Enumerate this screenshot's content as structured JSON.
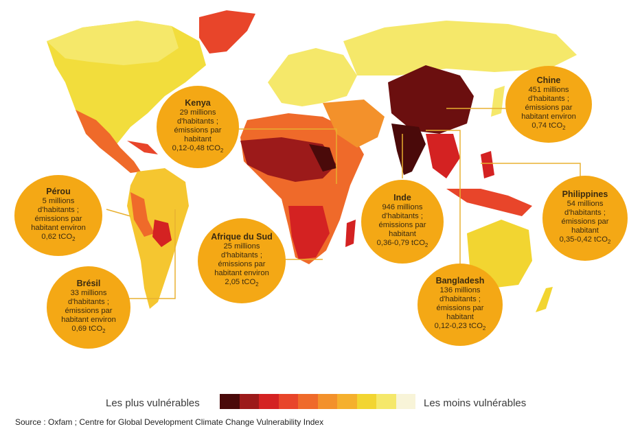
{
  "colors": {
    "bubble": "#f4a815",
    "connector": "#e8b030",
    "scale": [
      "#4a0a0a",
      "#9c1a1a",
      "#d42222",
      "#e8452a",
      "#ef6a2a",
      "#f3912b",
      "#f5b02d",
      "#f2d531",
      "#f5e86a",
      "#f8f4d8"
    ]
  },
  "callouts": [
    {
      "id": "kenya",
      "name": "Kenya",
      "lines": [
        "29 millions",
        "d'habitants ;",
        "émissions par",
        "habitant"
      ],
      "co2": "0,12-0,48 tCO",
      "co2_sub": "2"
    },
    {
      "id": "perou",
      "name": "Pérou",
      "lines": [
        "5 millions",
        "d'habitants ;",
        "émissions par",
        "habitant environ"
      ],
      "co2": "0,62 tCO",
      "co2_sub": "2"
    },
    {
      "id": "bresil",
      "name": "Brésil",
      "lines": [
        "33 millions",
        "d'habitants ;",
        "émissions par",
        "habitant environ"
      ],
      "co2": "0,69 tCO",
      "co2_sub": "2"
    },
    {
      "id": "afrique-du-sud",
      "name": "Afrique du Sud",
      "lines": [
        "25 millions",
        "d'habitants ;",
        "émissions par",
        "habitant environ"
      ],
      "co2": "2,05 tCO",
      "co2_sub": "2"
    },
    {
      "id": "inde",
      "name": "Inde",
      "lines": [
        "946 millions",
        "d'habitants ;",
        "émissions par",
        "habitant"
      ],
      "co2": "0,36-0,79 tCO",
      "co2_sub": "2"
    },
    {
      "id": "chine",
      "name": "Chine",
      "lines": [
        "451 millions",
        "d'habitants ;",
        "émissions par",
        "habitant environ"
      ],
      "co2": "0,74 tCO",
      "co2_sub": "2"
    },
    {
      "id": "philippines",
      "name": "Philippines",
      "lines": [
        "54 millions",
        "d'habitants ;",
        "émissions par",
        "habitant"
      ],
      "co2": "0,35-0,42 tCO",
      "co2_sub": "2"
    },
    {
      "id": "bangladesh",
      "name": "Bangladesh",
      "lines": [
        "136 millions",
        "d'habitants ;",
        "émissions par",
        "habitant"
      ],
      "co2": "0,12-0,23 tCO",
      "co2_sub": "2"
    }
  ],
  "legend": {
    "left_label": "Les plus vulnérables",
    "right_label": "Les moins vulnérables"
  },
  "source": "Source : Oxfam ; Centre for Global Development Climate Change Vulnerability Index"
}
